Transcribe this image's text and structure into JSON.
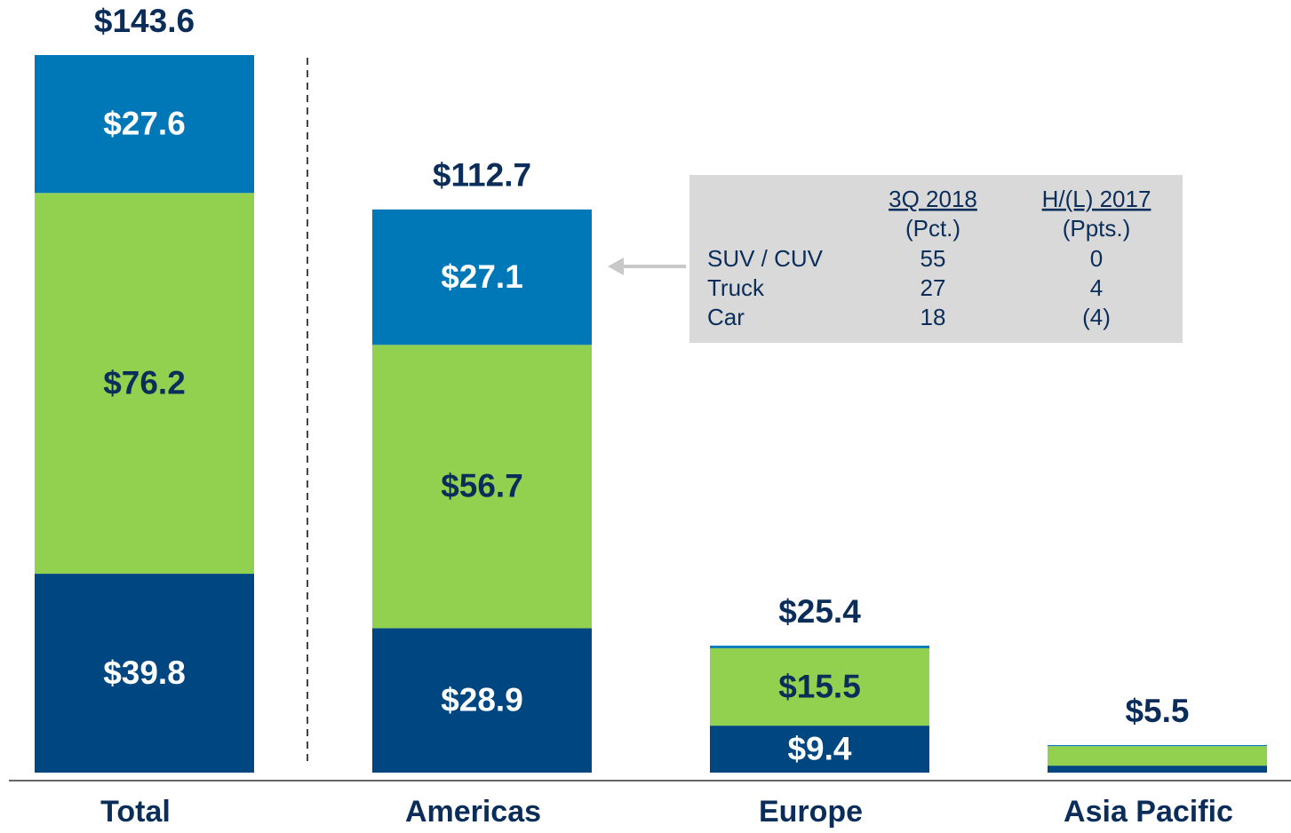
{
  "chart_data": {
    "type": "stacked_bar",
    "categories": [
      "Total",
      "Americas",
      "Europe",
      "Asia Pacific"
    ],
    "series": [
      {
        "color": "#004680",
        "label_color": "#ffffff",
        "values": [
          39.8,
          28.9,
          9.4,
          1.4
        ],
        "value_labels": [
          "$39.8",
          "$28.9",
          "$9.4",
          null
        ]
      },
      {
        "color": "#92d050",
        "label_color": "#0b2d5a",
        "values": [
          76.2,
          56.7,
          15.5,
          3.9
        ],
        "value_labels": [
          "$76.2",
          "$56.7",
          "$15.5",
          null
        ]
      },
      {
        "color": "#0077b6",
        "label_color": "#ffffff",
        "values": [
          27.6,
          27.1,
          0.5,
          0.2
        ],
        "value_labels": [
          "$27.6",
          "$27.1",
          null,
          null
        ]
      }
    ],
    "totals": [
      143.6,
      112.7,
      25.4,
      5.5
    ],
    "total_labels": [
      "$143.6",
      "$112.7",
      "$25.4",
      "$5.5"
    ],
    "ylim": [
      0,
      143.6
    ]
  },
  "inset": {
    "headers": [
      [
        "3Q 2018",
        "(Pct.)"
      ],
      [
        "H/(L) 2017",
        "(Ppts.)"
      ]
    ],
    "rows": [
      [
        "SUV / CUV",
        "55",
        "0"
      ],
      [
        "Truck",
        "27",
        "4"
      ],
      [
        "Car",
        "18",
        "(4)"
      ]
    ]
  }
}
